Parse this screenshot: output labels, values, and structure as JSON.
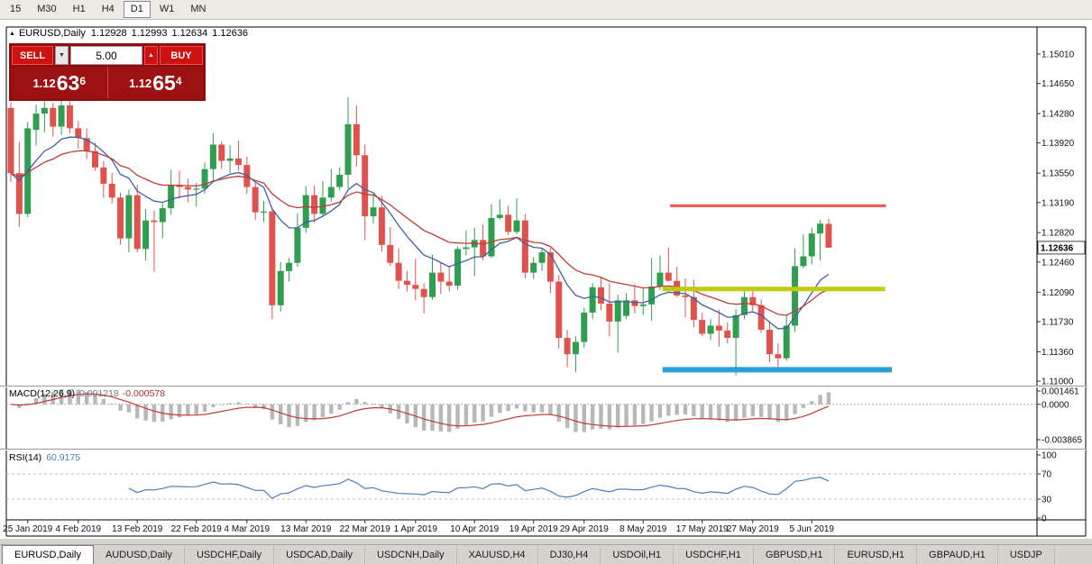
{
  "toolbar": {
    "timeframes": [
      {
        "label": "15",
        "active": false
      },
      {
        "label": "M30",
        "active": false
      },
      {
        "label": "H1",
        "active": false
      },
      {
        "label": "H4",
        "active": false
      },
      {
        "label": "D1",
        "active": true
      },
      {
        "label": "W1",
        "active": false
      },
      {
        "label": "MN",
        "active": false
      }
    ]
  },
  "icons": {
    "collapse": "▲",
    "dropdown": "▼",
    "spin_up": "▲"
  },
  "chart": {
    "symbol_title": "EURUSD,Daily",
    "open": "1.12928",
    "high": "1.12993",
    "low": "1.12634",
    "close": "1.12636"
  },
  "trade_panel": {
    "sell_label": "SELL",
    "buy_label": "BUY",
    "volume": "5.00",
    "sell_price": {
      "prefix": "1.12",
      "pips": "63",
      "pipette": "6"
    },
    "buy_price": {
      "prefix": "1.12",
      "pips": "65",
      "pipette": "4"
    }
  },
  "indicators": {
    "macd": {
      "label": "MACD(12,26,9)",
      "value": "0.001218",
      "signal_value": "-0.000578"
    },
    "rsi": {
      "label": "RSI(14)",
      "value": "60.9175"
    }
  },
  "tabs": [
    {
      "label": "EURUSD,Daily",
      "active": true
    },
    {
      "label": "AUDUSD,Daily",
      "active": false
    },
    {
      "label": "USDCHF,Daily",
      "active": false
    },
    {
      "label": "USDCAD,Daily",
      "active": false
    },
    {
      "label": "USDCNH,Daily",
      "active": false
    },
    {
      "label": "XAUUSD,H4",
      "active": false
    },
    {
      "label": "DJ30,H4",
      "active": false
    },
    {
      "label": "USDOil,H1",
      "active": false
    },
    {
      "label": "USDCHF,H1",
      "active": false
    },
    {
      "label": "GBPUSD,H1",
      "active": false
    },
    {
      "label": "EURUSD,H1",
      "active": false
    },
    {
      "label": "GBPAUD,H1",
      "active": false
    },
    {
      "label": "USDJP",
      "active": false
    }
  ],
  "chart_data": {
    "type": "candlestick",
    "symbol": "EURUSD",
    "timeframe": "Daily",
    "current_price": 1.12636,
    "up_color": "#2f9e4f",
    "down_color": "#e0534d",
    "y_axis_labels": [
      "1.15010",
      "1.14650",
      "1.14280",
      "1.13920",
      "1.13550",
      "1.13190",
      "1.12820",
      "1.12460",
      "1.12090",
      "1.11730",
      "1.11360",
      "1.11000"
    ],
    "x_axis_labels": [
      {
        "text": "25 Jan 2019",
        "index": 2
      },
      {
        "text": "4 Feb 2019",
        "index": 8
      },
      {
        "text": "13 Feb 2019",
        "index": 15
      },
      {
        "text": "22 Feb 2019",
        "index": 22
      },
      {
        "text": "4 Mar 2019",
        "index": 28
      },
      {
        "text": "13 Mar 2019",
        "index": 35
      },
      {
        "text": "22 Mar 2019",
        "index": 42
      },
      {
        "text": "1 Apr 2019",
        "index": 48
      },
      {
        "text": "10 Apr 2019",
        "index": 55
      },
      {
        "text": "19 Apr 2019",
        "index": 62
      },
      {
        "text": "29 Apr 2019",
        "index": 68
      },
      {
        "text": "8 May 2019",
        "index": 75
      },
      {
        "text": "17 May 2019",
        "index": 82
      },
      {
        "text": "27 May 2019",
        "index": 88
      },
      {
        "text": "5 Jun 2019",
        "index": 95
      }
    ],
    "candles": [
      [
        1.1435,
        1.1442,
        1.1344,
        1.1355
      ],
      [
        1.1355,
        1.1393,
        1.1289,
        1.1305
      ],
      [
        1.1305,
        1.1418,
        1.1301,
        1.141
      ],
      [
        1.1408,
        1.1439,
        1.1389,
        1.1428
      ],
      [
        1.1428,
        1.1443,
        1.1405,
        1.1435
      ],
      [
        1.1435,
        1.1441,
        1.14,
        1.1412
      ],
      [
        1.1412,
        1.1444,
        1.1402,
        1.1438
      ],
      [
        1.1438,
        1.1443,
        1.1404,
        1.141
      ],
      [
        1.141,
        1.1419,
        1.1385,
        1.1398
      ],
      [
        1.1398,
        1.141,
        1.1372,
        1.1382
      ],
      [
        1.1382,
        1.1392,
        1.1358,
        1.1362
      ],
      [
        1.1362,
        1.137,
        1.1325,
        1.1342
      ],
      [
        1.1342,
        1.1355,
        1.1318,
        1.1325
      ],
      [
        1.1325,
        1.1331,
        1.1267,
        1.1275
      ],
      [
        1.1275,
        1.1335,
        1.1258,
        1.1328
      ],
      [
        1.1328,
        1.1341,
        1.1258,
        1.1262
      ],
      [
        1.1262,
        1.1311,
        1.1248,
        1.1297
      ],
      [
        1.1297,
        1.1309,
        1.1234,
        1.1295
      ],
      [
        1.1295,
        1.1318,
        1.1275,
        1.1312
      ],
      [
        1.1312,
        1.1359,
        1.1304,
        1.134
      ],
      [
        1.134,
        1.1358,
        1.1324,
        1.1338
      ],
      [
        1.1338,
        1.1348,
        1.1319,
        1.1335
      ],
      [
        1.1335,
        1.1343,
        1.1314,
        1.1336
      ],
      [
        1.1336,
        1.1368,
        1.133,
        1.136
      ],
      [
        1.136,
        1.1404,
        1.1345,
        1.139
      ],
      [
        1.139,
        1.1394,
        1.136,
        1.137
      ],
      [
        1.137,
        1.1389,
        1.1355,
        1.1373
      ],
      [
        1.1373,
        1.1395,
        1.1358,
        1.1365
      ],
      [
        1.1365,
        1.1375,
        1.133,
        1.1338
      ],
      [
        1.1338,
        1.1344,
        1.1298,
        1.1307
      ],
      [
        1.1307,
        1.1321,
        1.1295,
        1.1308
      ],
      [
        1.1308,
        1.1312,
        1.1176,
        1.1193
      ],
      [
        1.1193,
        1.1246,
        1.1185,
        1.1235
      ],
      [
        1.1235,
        1.1251,
        1.1222,
        1.1245
      ],
      [
        1.1245,
        1.1306,
        1.124,
        1.1288
      ],
      [
        1.1288,
        1.1339,
        1.1282,
        1.1328
      ],
      [
        1.1328,
        1.134,
        1.1294,
        1.1305
      ],
      [
        1.1305,
        1.1345,
        1.1302,
        1.1325
      ],
      [
        1.1325,
        1.136,
        1.132,
        1.1338
      ],
      [
        1.1338,
        1.1362,
        1.1334,
        1.1353
      ],
      [
        1.1353,
        1.1448,
        1.1336,
        1.1415
      ],
      [
        1.1415,
        1.1438,
        1.1363,
        1.1377
      ],
      [
        1.1377,
        1.139,
        1.1273,
        1.1302
      ],
      [
        1.1302,
        1.133,
        1.1293,
        1.1313
      ],
      [
        1.1313,
        1.1327,
        1.1259,
        1.1267
      ],
      [
        1.1267,
        1.1289,
        1.1241,
        1.1245
      ],
      [
        1.1245,
        1.1263,
        1.1213,
        1.1223
      ],
      [
        1.1223,
        1.1235,
        1.121,
        1.1218
      ],
      [
        1.1218,
        1.125,
        1.1199,
        1.1213
      ],
      [
        1.1213,
        1.122,
        1.1183,
        1.1203
      ],
      [
        1.1203,
        1.1255,
        1.12,
        1.1233
      ],
      [
        1.1233,
        1.1245,
        1.1207,
        1.1222
      ],
      [
        1.1222,
        1.1242,
        1.121,
        1.1217
      ],
      [
        1.1217,
        1.1265,
        1.1212,
        1.1262
      ],
      [
        1.1262,
        1.1285,
        1.1254,
        1.1264
      ],
      [
        1.1264,
        1.1288,
        1.1229,
        1.1273
      ],
      [
        1.1273,
        1.1292,
        1.1248,
        1.1253
      ],
      [
        1.1253,
        1.1317,
        1.1251,
        1.13
      ],
      [
        1.13,
        1.1323,
        1.1298,
        1.1304
      ],
      [
        1.1304,
        1.1315,
        1.1279,
        1.1283
      ],
      [
        1.1283,
        1.1324,
        1.128,
        1.1297
      ],
      [
        1.1297,
        1.1305,
        1.1226,
        1.1233
      ],
      [
        1.1233,
        1.1252,
        1.1225,
        1.1245
      ],
      [
        1.1245,
        1.1262,
        1.1235,
        1.1258
      ],
      [
        1.1258,
        1.1263,
        1.1208,
        1.1222
      ],
      [
        1.1222,
        1.123,
        1.114,
        1.1153
      ],
      [
        1.1153,
        1.1163,
        1.1117,
        1.1133
      ],
      [
        1.1133,
        1.1155,
        1.1111,
        1.1148
      ],
      [
        1.1148,
        1.119,
        1.1141,
        1.1184
      ],
      [
        1.1184,
        1.122,
        1.1176,
        1.1215
      ],
      [
        1.1215,
        1.1228,
        1.1187,
        1.1195
      ],
      [
        1.1195,
        1.122,
        1.1155,
        1.1173
      ],
      [
        1.1173,
        1.1206,
        1.1135,
        1.1199
      ],
      [
        1.118,
        1.1208,
        1.1176,
        1.1199
      ],
      [
        1.1199,
        1.1219,
        1.1183,
        1.1192
      ],
      [
        1.1192,
        1.1214,
        1.1181,
        1.1194
      ],
      [
        1.1194,
        1.1251,
        1.1174,
        1.1216
      ],
      [
        1.1216,
        1.1254,
        1.1212,
        1.1233
      ],
      [
        1.1233,
        1.1264,
        1.1222,
        1.1223
      ],
      [
        1.1223,
        1.124,
        1.1203,
        1.1205
      ],
      [
        1.1205,
        1.1226,
        1.1178,
        1.1203
      ],
      [
        1.1203,
        1.1224,
        1.1166,
        1.1175
      ],
      [
        1.1175,
        1.1184,
        1.1155,
        1.1158
      ],
      [
        1.1158,
        1.1176,
        1.115,
        1.1168
      ],
      [
        1.1168,
        1.1188,
        1.1142,
        1.1162
      ],
      [
        1.1162,
        1.1172,
        1.1146,
        1.1153
      ],
      [
        1.1153,
        1.1188,
        1.1107,
        1.1181
      ],
      [
        1.1181,
        1.1213,
        1.1176,
        1.1203
      ],
      [
        1.1203,
        1.1215,
        1.1186,
        1.1193
      ],
      [
        1.1193,
        1.12,
        1.1159,
        1.1163
      ],
      [
        1.1163,
        1.1172,
        1.1123,
        1.1133
      ],
      [
        1.1133,
        1.1146,
        1.1116,
        1.1128
      ],
      [
        1.1128,
        1.1182,
        1.1125,
        1.1168
      ],
      [
        1.1168,
        1.1263,
        1.116,
        1.1241
      ],
      [
        1.1241,
        1.128,
        1.1238,
        1.1253
      ],
      [
        1.1253,
        1.1288,
        1.1243,
        1.1281
      ],
      [
        1.1281,
        1.1298,
        1.1248,
        1.1293
      ],
      [
        1.12928,
        1.12993,
        1.12634,
        1.12636
      ]
    ],
    "moving_averages": [
      {
        "name": "fast",
        "method": "EMA",
        "period": 10,
        "color": "#3f5ea8"
      },
      {
        "name": "slow",
        "method": "EMA",
        "period": 22,
        "color": "#c23b3b"
      }
    ],
    "trend_lines": [
      {
        "name": "resistance",
        "price": 1.1315,
        "from_index": 78.2,
        "to_index": 103.8,
        "color": "#ef5350",
        "width": 3
      },
      {
        "name": "breakout",
        "price": 1.1213,
        "from_index": 77.3,
        "to_index": 103.7,
        "color": "#bfca10",
        "width": 5
      },
      {
        "name": "support",
        "price": 1.1114,
        "from_index": 77.3,
        "to_index": 104.5,
        "color": "#2b9fd8",
        "width": 6
      }
    ],
    "macd": {
      "fast": 12,
      "slow": 26,
      "signal": 9,
      "histogram_color": "#b8b8b8",
      "signal_color": "#c23b3b",
      "axis_labels": [
        "0.001461",
        "0.0000",
        "-0.003865"
      ]
    },
    "rsi": {
      "period": 14,
      "color": "#4d7dbd",
      "levels": [
        70,
        30
      ],
      "axis_labels": [
        "100",
        "70",
        "30",
        "0"
      ]
    }
  }
}
